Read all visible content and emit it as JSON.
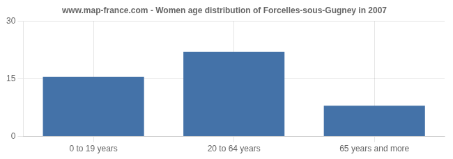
{
  "chart_data": {
    "type": "bar",
    "title": "www.map-france.com - Women age distribution of Forcelles-sous-Gugney in 2007",
    "categories": [
      "0 to 19 years",
      "20 to 64 years",
      "65 years and more"
    ],
    "values": [
      15.5,
      22.0,
      8.0
    ],
    "color": "#4472a8",
    "ylim": [
      0,
      30
    ],
    "yticks": [
      0,
      15,
      30
    ],
    "grid": true
  }
}
